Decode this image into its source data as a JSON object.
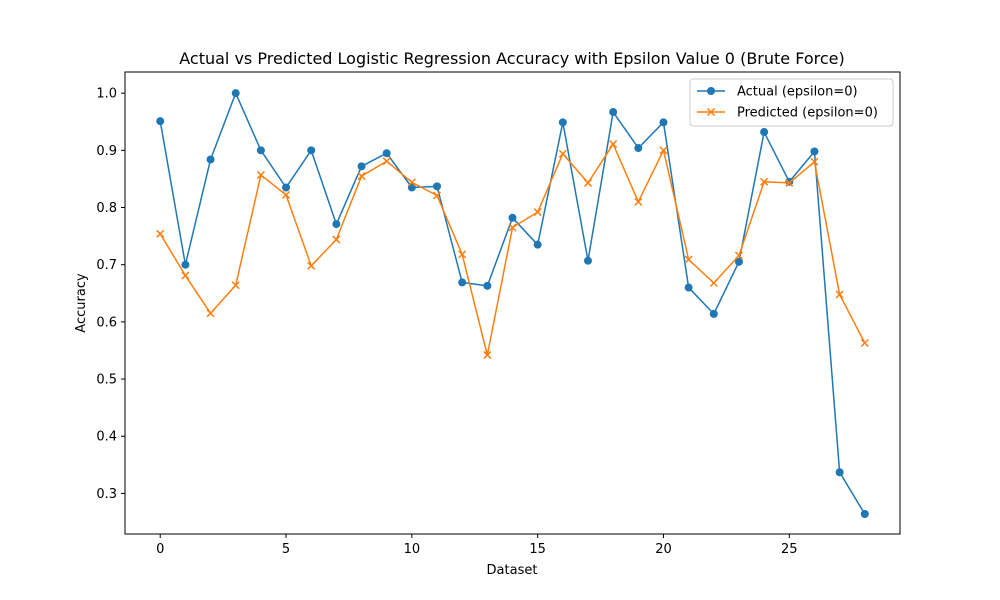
{
  "chart_data": {
    "type": "line",
    "title": "Actual vs Predicted Logistic Regression Accuracy with Epsilon Value 0 (Brute Force)",
    "xlabel": "Dataset",
    "ylabel": "Accuracy",
    "xlim": [
      -1.4,
      29.4
    ],
    "ylim": [
      0.229,
      1.037
    ],
    "xticks": [
      0,
      5,
      10,
      15,
      20,
      25
    ],
    "yticks": [
      0.3,
      0.4,
      0.5,
      0.6,
      0.7,
      0.8,
      0.9,
      1.0
    ],
    "grid": false,
    "legend_position": "top-right",
    "x": [
      0,
      1,
      2,
      3,
      4,
      5,
      6,
      7,
      8,
      9,
      10,
      11,
      12,
      13,
      14,
      15,
      16,
      17,
      18,
      19,
      20,
      21,
      22,
      23,
      24,
      25,
      26,
      27,
      28
    ],
    "series": [
      {
        "name": "Actual (epsilon=0)",
        "color": "#1f77b4",
        "marker": "circle",
        "values": [
          0.951,
          0.7,
          0.884,
          1.0,
          0.9,
          0.835,
          0.9,
          0.771,
          0.872,
          0.895,
          0.835,
          0.837,
          0.669,
          0.663,
          0.782,
          0.735,
          0.949,
          0.707,
          0.967,
          0.904,
          0.949,
          0.66,
          0.614,
          0.705,
          0.932,
          0.845,
          0.898,
          0.337,
          0.264
        ]
      },
      {
        "name": "Predicted (epsilon=0)",
        "color": "#ff7f0e",
        "marker": "x",
        "values": [
          0.754,
          0.681,
          0.615,
          0.664,
          0.857,
          0.822,
          0.698,
          0.744,
          0.855,
          0.881,
          0.844,
          0.821,
          0.718,
          0.542,
          0.765,
          0.792,
          0.894,
          0.843,
          0.911,
          0.81,
          0.9,
          0.709,
          0.668,
          0.716,
          0.845,
          0.843,
          0.88,
          0.648,
          0.563
        ]
      }
    ]
  }
}
